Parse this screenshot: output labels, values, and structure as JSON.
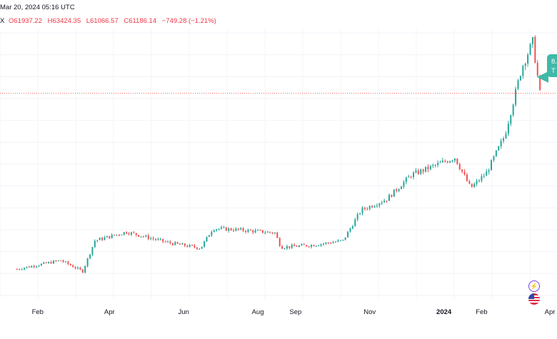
{
  "header": {
    "timestamp": "Mar 20, 2024 05:16 UTC",
    "ohlc_prefix": "X",
    "open": "O61937.22",
    "high": "H63424.35",
    "low": "L61066.57",
    "close": "C61186.14",
    "change": "−749.28 (−1.21%)"
  },
  "callout": {
    "line1": "8.",
    "line2": "T"
  },
  "icons": {
    "bolt": "lightning-icon",
    "flag": "us-flag-icon"
  },
  "colors": {
    "up": "#26a69a",
    "down": "#ef5350",
    "current_price_line": "#ef5350",
    "callout": "#3fb9a8"
  },
  "chart_data": {
    "type": "candlestick",
    "x_ticks": [
      "Feb",
      "Apr",
      "Jun",
      "Aug",
      "Sep",
      "Nov",
      "2024",
      "Feb",
      "Apr"
    ],
    "current_price": 61186.14,
    "grid": "horizontal",
    "series_trend": [
      {
        "date": "2023-01-15",
        "close": 21000
      },
      {
        "date": "2023-02-20",
        "close": 23000
      },
      {
        "date": "2023-03-10",
        "close": 20500
      },
      {
        "date": "2023-03-20",
        "close": 27500
      },
      {
        "date": "2023-04-15",
        "close": 29500
      },
      {
        "date": "2023-05-20",
        "close": 27000
      },
      {
        "date": "2023-06-15",
        "close": 25800
      },
      {
        "date": "2023-06-25",
        "close": 30300
      },
      {
        "date": "2023-07-15",
        "close": 30000
      },
      {
        "date": "2023-08-15",
        "close": 29300
      },
      {
        "date": "2023-08-20",
        "close": 26000
      },
      {
        "date": "2023-09-15",
        "close": 26500
      },
      {
        "date": "2023-10-10",
        "close": 27500
      },
      {
        "date": "2023-10-25",
        "close": 34500
      },
      {
        "date": "2023-11-15",
        "close": 37000
      },
      {
        "date": "2023-12-05",
        "close": 42500
      },
      {
        "date": "2024-01-10",
        "close": 46500
      },
      {
        "date": "2024-01-23",
        "close": 39500
      },
      {
        "date": "2024-02-05",
        "close": 43000
      },
      {
        "date": "2024-02-20",
        "close": 51500
      },
      {
        "date": "2024-03-05",
        "close": 67000
      },
      {
        "date": "2024-03-14",
        "close": 73000
      },
      {
        "date": "2024-03-20",
        "close": 61186
      }
    ]
  }
}
